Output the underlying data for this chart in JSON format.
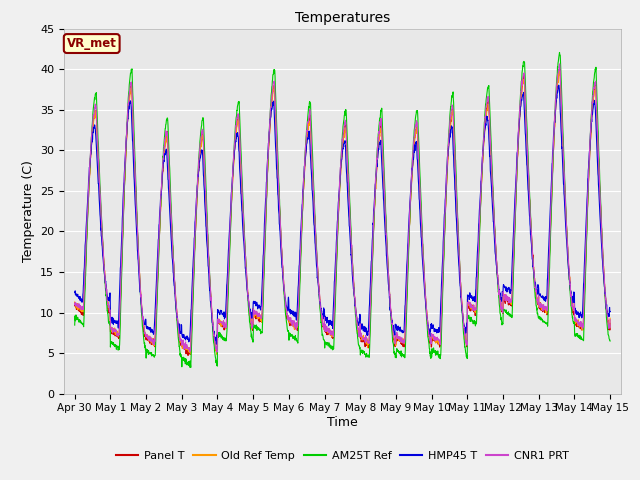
{
  "title": "Temperatures",
  "xlabel": "Time",
  "ylabel": "Temperature (C)",
  "ylim": [
    0,
    45
  ],
  "background_color": "#f0f0f0",
  "plot_bg": "#e8e8e8",
  "annotation": "VR_met",
  "series_names": [
    "Panel T",
    "Old Ref Temp",
    "AM25T Ref",
    "HMP45 T",
    "CNR1 PRT"
  ],
  "series_colors": [
    "#cc0000",
    "#ff9900",
    "#00cc00",
    "#0000dd",
    "#cc44cc"
  ],
  "tick_labels": [
    "Apr 30",
    "May 1",
    "May 2",
    "May 3",
    "May 4",
    "May 5",
    "May 6",
    "May 7",
    "May 8",
    "May 9",
    "May 10",
    "May 11",
    "May 12",
    "May 13",
    "May 14",
    "May 15"
  ],
  "tick_positions": [
    0,
    1,
    2,
    3,
    4,
    5,
    6,
    7,
    8,
    9,
    10,
    11,
    12,
    13,
    14,
    15
  ],
  "yticks": [
    0,
    5,
    10,
    15,
    20,
    25,
    30,
    35,
    40,
    45
  ],
  "figsize": [
    6.4,
    4.8
  ],
  "dpi": 100
}
